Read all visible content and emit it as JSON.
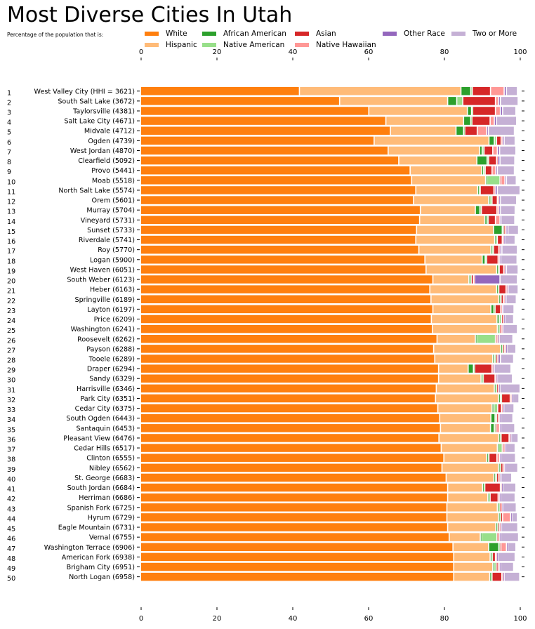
{
  "chart_data": {
    "type": "bar",
    "orientation": "horizontal",
    "stacked": true,
    "title": "Most Diverse Cities In Utah",
    "subtitle": "Percentage of the population that is:",
    "xlabel": "",
    "ylabel": "",
    "xlim": [
      0,
      100
    ],
    "xticks": [
      0,
      20,
      40,
      60,
      80,
      100
    ],
    "x_axis_positions": [
      "top",
      "bottom"
    ],
    "grid": false,
    "legend_position": "top",
    "series_names": [
      "White",
      "Hispanic",
      "African American",
      "Native American",
      "Asian",
      "Native Hawaiian",
      "Other Race",
      "Two or More"
    ],
    "series_colors": [
      "#ff7f0e",
      "#ffbb78",
      "#2ca02c",
      "#98df8a",
      "#d62728",
      "#ff9896",
      "#9467bd",
      "#c5b0d5"
    ],
    "categories": [
      {
        "rank": "1",
        "label": "West Valley City (HHI = 3621)",
        "values": [
          41.9,
          42.6,
          2.6,
          0.4,
          4.8,
          3.6,
          0.6,
          2.6
        ]
      },
      {
        "rank": "2",
        "label": "South Salt Lake (3672)",
        "values": [
          52.5,
          28.5,
          2.4,
          1.6,
          8.6,
          0.8,
          0.5,
          4.4
        ]
      },
      {
        "rank": "3",
        "label": "Taylorsville (4381)",
        "values": [
          60.2,
          26.0,
          1.1,
          0.3,
          6.0,
          1.3,
          0.6,
          3.2
        ]
      },
      {
        "rank": "4",
        "label": "Salt Lake City (4671)",
        "values": [
          64.7,
          20.5,
          1.9,
          0.3,
          4.8,
          1.1,
          0.6,
          5.0
        ]
      },
      {
        "rank": "5",
        "label": "Midvale (4712)",
        "values": [
          65.9,
          17.3,
          2.0,
          0.3,
          3.3,
          2.5,
          0.4,
          6.6
        ]
      },
      {
        "rank": "6",
        "label": "Ogden (4739)",
        "values": [
          61.6,
          30.3,
          1.4,
          0.6,
          1.2,
          0.3,
          0.5,
          2.6
        ]
      },
      {
        "rank": "7",
        "label": "West Jordan (4870)",
        "values": [
          65.3,
          24.1,
          0.7,
          0.5,
          2.3,
          1.2,
          0.6,
          4.0
        ]
      },
      {
        "rank": "8",
        "label": "Clearfield (5092)",
        "values": [
          68.1,
          20.6,
          2.7,
          0.4,
          2.1,
          0.3,
          0.6,
          3.6
        ]
      },
      {
        "rank": "9",
        "label": "Provo (5441)",
        "values": [
          71.1,
          18.9,
          0.5,
          0.4,
          1.8,
          1.0,
          0.4,
          4.2
        ]
      },
      {
        "rank": "10",
        "label": "Moab (5518)",
        "values": [
          71.5,
          19.5,
          0.3,
          3.5,
          0.3,
          1.0,
          0.4,
          2.3
        ]
      },
      {
        "rank": "11",
        "label": "North Salt Lake (5574)",
        "values": [
          72.6,
          16.3,
          0.4,
          0.3,
          3.6,
          0.3,
          0.6,
          5.7
        ]
      },
      {
        "rank": "12",
        "label": "Orem (5601)",
        "values": [
          72.0,
          19.8,
          0.3,
          0.6,
          1.4,
          0.4,
          0.4,
          4.0
        ]
      },
      {
        "rank": "13",
        "label": "Murray (5704)",
        "values": [
          73.8,
          14.5,
          1.2,
          0.4,
          4.1,
          0.5,
          0.4,
          3.6
        ]
      },
      {
        "rank": "14",
        "label": "Vineyard (5731)",
        "values": [
          73.6,
          17.2,
          0.6,
          0.3,
          1.9,
          1.2,
          0.3,
          3.3
        ]
      },
      {
        "rank": "15",
        "label": "Sunset (5733)",
        "values": [
          72.8,
          20.3,
          2.3,
          0.3,
          0.3,
          0.4,
          0.5,
          2.5
        ]
      },
      {
        "rank": "16",
        "label": "Riverdale (5741)",
        "values": [
          72.6,
          20.8,
          0.3,
          0.4,
          1.3,
          0.3,
          0.3,
          2.5
        ]
      },
      {
        "rank": "17",
        "label": "Roy (5770)",
        "values": [
          73.4,
          19.0,
          0.3,
          0.4,
          1.4,
          0.3,
          0.5,
          3.8
        ]
      },
      {
        "rank": "18",
        "label": "Logan (5900)",
        "values": [
          75.0,
          15.1,
          0.8,
          0.4,
          3.0,
          0.3,
          0.4,
          4.0
        ]
      },
      {
        "rank": "19",
        "label": "West Haven (6051)",
        "values": [
          75.3,
          18.6,
          0.3,
          0.4,
          1.2,
          0.3,
          0.4,
          2.8
        ]
      },
      {
        "rank": "20",
        "label": "South Weber (6123)",
        "values": [
          77.1,
          9.5,
          0.3,
          0.3,
          0.6,
          0.3,
          6.7,
          4.3
        ]
      },
      {
        "rank": "21",
        "label": "Heber (6163)",
        "values": [
          76.3,
          17.6,
          0.3,
          0.3,
          1.9,
          0.3,
          0.3,
          2.3
        ]
      },
      {
        "rank": "22",
        "label": "Springville (6189)",
        "values": [
          76.6,
          17.9,
          0.3,
          0.3,
          0.6,
          0.4,
          0.3,
          2.4
        ]
      },
      {
        "rank": "23",
        "label": "Layton (6197)",
        "values": [
          77.1,
          15.3,
          0.8,
          0.3,
          1.5,
          0.4,
          0.3,
          2.5
        ]
      },
      {
        "rank": "24",
        "label": "Price (6209)",
        "values": [
          76.7,
          17.3,
          0.6,
          0.6,
          0.3,
          0.3,
          0.3,
          2.0
        ]
      },
      {
        "rank": "25",
        "label": "Washington (6241)",
        "values": [
          77.0,
          17.1,
          0.3,
          0.3,
          0.4,
          0.3,
          0.3,
          3.4
        ]
      },
      {
        "rank": "26",
        "label": "Roosevelt (6262)",
        "values": [
          78.2,
          10.1,
          0.3,
          5.0,
          0.4,
          0.3,
          0.3,
          3.3
        ]
      },
      {
        "rank": "27",
        "label": "Payson (6288)",
        "values": [
          77.3,
          17.7,
          0.3,
          0.3,
          0.3,
          0.4,
          0.3,
          2.1
        ]
      },
      {
        "rank": "28",
        "label": "Tooele (6289)",
        "values": [
          77.6,
          15.3,
          0.5,
          0.3,
          0.3,
          0.3,
          0.6,
          3.2
        ]
      },
      {
        "rank": "29",
        "label": "Draper (6294)",
        "values": [
          78.6,
          7.8,
          1.4,
          0.3,
          4.6,
          0.3,
          0.3,
          4.1
        ]
      },
      {
        "rank": "30",
        "label": "Sandy (6329)",
        "values": [
          78.6,
          11.2,
          0.3,
          0.3,
          3.1,
          0.3,
          0.3,
          3.7
        ]
      },
      {
        "rank": "31",
        "label": "Harrisville (6346)",
        "values": [
          78.0,
          15.3,
          0.3,
          0.3,
          0.3,
          0.3,
          0.3,
          5.0
        ]
      },
      {
        "rank": "32",
        "label": "Park City (6351)",
        "values": [
          77.8,
          16.6,
          0.5,
          0.3,
          2.3,
          0.3,
          0.3,
          1.4
        ]
      },
      {
        "rank": "33",
        "label": "Cedar City (6375)",
        "values": [
          78.4,
          14.3,
          0.5,
          1.0,
          1.0,
          0.3,
          0.3,
          2.4
        ]
      },
      {
        "rank": "34",
        "label": "South Ogden (6443)",
        "values": [
          78.9,
          13.5,
          1.1,
          0.4,
          0.4,
          0.3,
          0.3,
          3.0
        ]
      },
      {
        "rank": "35",
        "label": "Santaquin (6453)",
        "values": [
          79.1,
          13.2,
          1.0,
          0.3,
          0.3,
          0.8,
          0.3,
          3.4
        ]
      },
      {
        "rank": "36",
        "label": "Pleasant View (6476)",
        "values": [
          78.7,
          15.8,
          0.3,
          0.3,
          2.1,
          0.3,
          0.3,
          1.5
        ]
      },
      {
        "rank": "37",
        "label": "Cedar Hills (6517)",
        "values": [
          79.3,
          14.8,
          0.3,
          1.0,
          0.3,
          0.3,
          0.3,
          2.2
        ]
      },
      {
        "rank": "38",
        "label": "Clinton (6555)",
        "values": [
          80.0,
          11.3,
          0.3,
          0.3,
          2.1,
          0.7,
          0.3,
          3.6
        ]
      },
      {
        "rank": "39",
        "label": "Nibley (6562)",
        "values": [
          79.5,
          14.9,
          0.3,
          0.3,
          0.6,
          0.3,
          0.3,
          3.0
        ]
      },
      {
        "rank": "40",
        "label": "St. George (6683)",
        "values": [
          80.6,
          12.6,
          0.3,
          0.4,
          0.6,
          0.3,
          0.3,
          2.5
        ]
      },
      {
        "rank": "41",
        "label": "South Jordan (6684)",
        "values": [
          81.0,
          9.2,
          0.3,
          0.3,
          4.1,
          0.3,
          0.3,
          3.2
        ]
      },
      {
        "rank": "42",
        "label": "Herriman (6686)",
        "values": [
          81.0,
          10.6,
          0.3,
          0.3,
          2.1,
          0.3,
          0.3,
          3.6
        ]
      },
      {
        "rank": "43",
        "label": "Spanish Fork (6725)",
        "values": [
          80.8,
          13.3,
          0.3,
          0.3,
          0.3,
          0.3,
          0.3,
          3.2
        ]
      },
      {
        "rank": "44",
        "label": "Hyrum (6729)",
        "values": [
          80.8,
          13.6,
          0.3,
          0.3,
          0.5,
          2.1,
          0.3,
          1.2
        ]
      },
      {
        "rank": "45",
        "label": "Eagle Mountain (6731)",
        "values": [
          81.0,
          12.7,
          0.3,
          0.3,
          0.3,
          0.3,
          0.3,
          4.0
        ]
      },
      {
        "rank": "46",
        "label": "Vernal (6755)",
        "values": [
          81.4,
          8.2,
          0.3,
          4.1,
          0.3,
          0.3,
          0.3,
          4.5
        ]
      },
      {
        "rank": "47",
        "label": "Washington Terrace (6906)",
        "values": [
          82.4,
          9.4,
          2.7,
          0.3,
          0.3,
          1.4,
          0.3,
          1.9
        ]
      },
      {
        "rank": "48",
        "label": "American Fork (6938)",
        "values": [
          82.6,
          9.6,
          0.3,
          0.3,
          0.8,
          0.3,
          0.3,
          4.3
        ]
      },
      {
        "rank": "49",
        "label": "Brigham City (6951)",
        "values": [
          82.6,
          10.3,
          0.3,
          0.6,
          0.5,
          0.3,
          0.3,
          3.2
        ]
      },
      {
        "rank": "50",
        "label": "North Logan (6958)",
        "values": [
          82.6,
          9.5,
          0.3,
          0.3,
          2.6,
          0.3,
          0.3,
          3.8
        ]
      }
    ]
  }
}
